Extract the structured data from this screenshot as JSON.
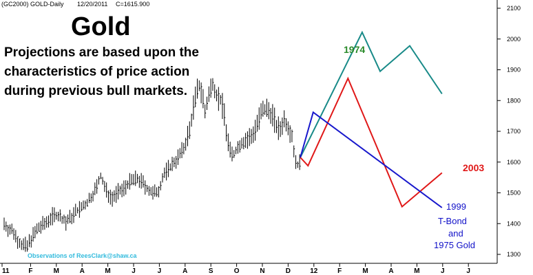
{
  "header": {
    "symbol": "(GC2000) GOLD-Daily",
    "date": "12/20/2011",
    "close": "C=1615.900",
    "close_color": "#22aa22"
  },
  "title": "Gold",
  "note_lines": [
    "Projections are based upon the",
    "characteristics of price action",
    "during previous bull markets."
  ],
  "credit": "Observations of ReesClark@shaw.ca",
  "labels": {
    "l1974": "1974",
    "l2003": "2003",
    "l1999": "1999",
    "tbond1": "T-Bond",
    "tbond2": "and",
    "tbond3": "1975 Gold"
  },
  "chart_data": {
    "type": "line",
    "ylim": [
      1290,
      2120
    ],
    "y_ticks": [
      1300,
      1400,
      1500,
      1600,
      1700,
      1800,
      1900,
      2000,
      2100
    ],
    "x_ticks": [
      "11",
      "F",
      "M",
      "A",
      "M",
      "J",
      "J",
      "A",
      "S",
      "O",
      "N",
      "D",
      "12",
      "F",
      "M",
      "A",
      "M",
      "J",
      "J"
    ],
    "grid": false,
    "price_bars": {
      "color": "#000000",
      "close_path": [
        [
          0,
          1400
        ],
        [
          0.2,
          1380
        ],
        [
          0.35,
          1375
        ],
        [
          0.5,
          1350
        ],
        [
          0.7,
          1330
        ],
        [
          0.9,
          1325
        ],
        [
          1.0,
          1345
        ],
        [
          1.2,
          1370
        ],
        [
          1.4,
          1390
        ],
        [
          1.6,
          1400
        ],
        [
          1.8,
          1420
        ],
        [
          2.0,
          1430
        ],
        [
          2.2,
          1420
        ],
        [
          2.4,
          1405
        ],
        [
          2.6,
          1420
        ],
        [
          2.8,
          1440
        ],
        [
          3.0,
          1450
        ],
        [
          3.2,
          1465
        ],
        [
          3.4,
          1490
        ],
        [
          3.6,
          1520
        ],
        [
          3.75,
          1555
        ],
        [
          3.85,
          1530
        ],
        [
          4.0,
          1500
        ],
        [
          4.2,
          1485
        ],
        [
          4.4,
          1500
        ],
        [
          4.6,
          1510
        ],
        [
          4.8,
          1530
        ],
        [
          5.0,
          1540
        ],
        [
          5.2,
          1545
        ],
        [
          5.4,
          1530
        ],
        [
          5.6,
          1510
        ],
        [
          5.8,
          1495
        ],
        [
          6.0,
          1510
        ],
        [
          6.2,
          1560
        ],
        [
          6.4,
          1580
        ],
        [
          6.6,
          1600
        ],
        [
          6.8,
          1620
        ],
        [
          7.0,
          1650
        ],
        [
          7.2,
          1700
        ],
        [
          7.35,
          1780
        ],
        [
          7.5,
          1830
        ],
        [
          7.6,
          1850
        ],
        [
          7.7,
          1820
        ],
        [
          7.8,
          1760
        ],
        [
          7.9,
          1800
        ],
        [
          8.0,
          1830
        ],
        [
          8.1,
          1860
        ],
        [
          8.25,
          1820
        ],
        [
          8.4,
          1800
        ],
        [
          8.55,
          1760
        ],
        [
          8.65,
          1680
        ],
        [
          8.75,
          1640
        ],
        [
          8.9,
          1620
        ],
        [
          9.0,
          1640
        ],
        [
          9.2,
          1660
        ],
        [
          9.4,
          1670
        ],
        [
          9.6,
          1680
        ],
        [
          9.8,
          1720
        ],
        [
          10.0,
          1760
        ],
        [
          10.2,
          1770
        ],
        [
          10.4,
          1760
        ],
        [
          10.55,
          1720
        ],
        [
          10.7,
          1700
        ],
        [
          10.85,
          1740
        ],
        [
          11.0,
          1720
        ],
        [
          11.15,
          1700
        ],
        [
          11.3,
          1610
        ],
        [
          11.45,
          1580
        ],
        [
          11.5,
          1615
        ]
      ]
    },
    "series": [
      {
        "name": "1974",
        "color": "#188a88",
        "label_color": "#2a8a2a",
        "points": [
          [
            11.5,
            1615
          ],
          [
            13.9,
            2022
          ],
          [
            14.6,
            1895
          ],
          [
            15.75,
            1978
          ],
          [
            17.0,
            1822
          ]
        ]
      },
      {
        "name": "2003",
        "color": "#e01818",
        "label_color": "#e01818",
        "points": [
          [
            11.5,
            1615
          ],
          [
            11.8,
            1588
          ],
          [
            13.35,
            1872
          ],
          [
            15.45,
            1455
          ],
          [
            17.0,
            1565
          ]
        ]
      },
      {
        "name": "1999",
        "color": "#1818cc",
        "label_color": "#1818cc",
        "points": [
          [
            11.5,
            1615
          ],
          [
            12.0,
            1762
          ],
          [
            17.0,
            1452
          ]
        ]
      }
    ]
  }
}
